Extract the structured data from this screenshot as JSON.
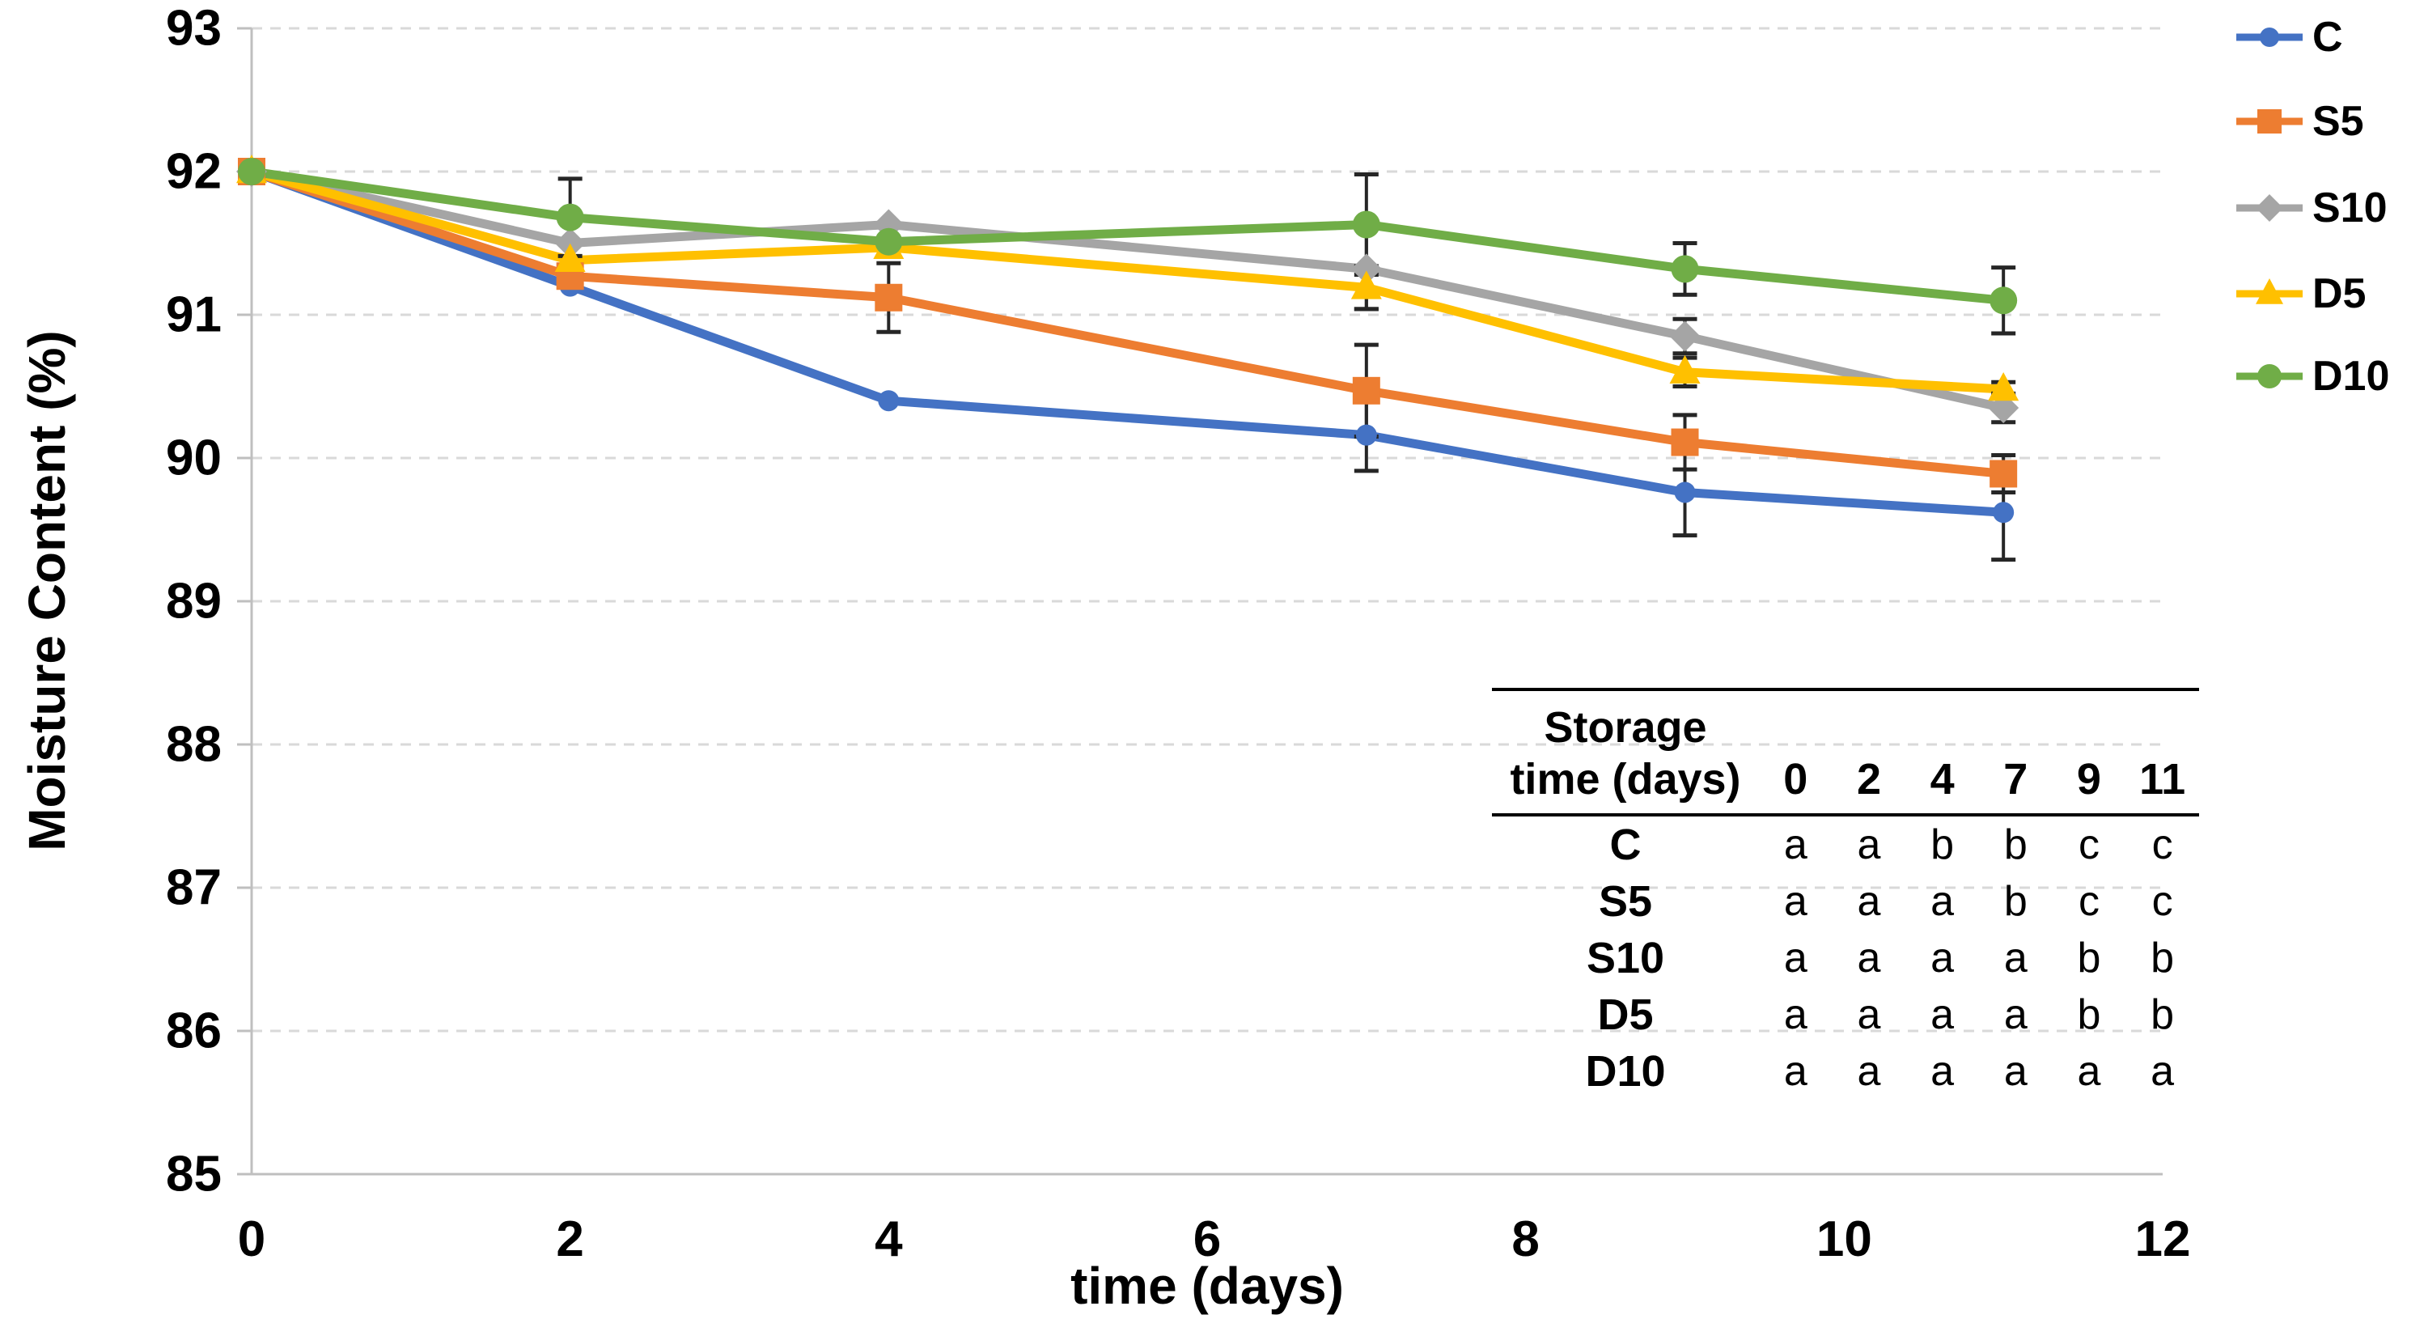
{
  "chart_data": {
    "type": "line",
    "title": "",
    "xlabel": "time (days)",
    "ylabel": "Moisture Content (%)",
    "x": [
      0,
      2,
      4,
      7,
      9,
      11
    ],
    "xlim": [
      0,
      12
    ],
    "ylim": [
      85,
      93
    ],
    "x_ticks": [
      0,
      2,
      4,
      6,
      8,
      10,
      12
    ],
    "y_ticks": [
      85,
      86,
      87,
      88,
      89,
      90,
      91,
      92,
      93
    ],
    "grid": "horizontal-dashed",
    "legend_position": "right",
    "series": [
      {
        "name": "C",
        "marker": "circle",
        "color": "#4472C4",
        "marker_size": 26,
        "values": [
          92.0,
          91.2,
          90.4,
          90.16,
          89.76,
          89.62
        ],
        "errors": [
          0.08,
          0,
          0,
          0.25,
          0.3,
          0.33
        ]
      },
      {
        "name": "S5",
        "marker": "square",
        "color": "#ED7D31",
        "marker_size": 34,
        "values": [
          92.0,
          91.27,
          91.12,
          90.47,
          90.11,
          89.89
        ],
        "errors": [
          0.08,
          0,
          0.24,
          0.32,
          0.19,
          0.13
        ]
      },
      {
        "name": "S10",
        "marker": "diamond",
        "color": "#A5A5A5",
        "marker_size": 38,
        "values": [
          92.0,
          91.5,
          91.63,
          91.32,
          90.85,
          90.35
        ],
        "errors": [
          0.08,
          0,
          0,
          0.28,
          0.12,
          0.1
        ]
      },
      {
        "name": "D5",
        "marker": "triangle",
        "color": "#FFC000",
        "marker_size": 38,
        "values": [
          92.0,
          91.38,
          91.47,
          91.19,
          90.6,
          90.48
        ],
        "errors": [
          0.08,
          0,
          0,
          0.15,
          0.1,
          0.05
        ]
      },
      {
        "name": "D10",
        "marker": "circle",
        "color": "#70AD47",
        "marker_size": 34,
        "values": [
          92.0,
          91.68,
          91.51,
          91.63,
          91.32,
          91.1
        ],
        "errors": [
          0.08,
          0.27,
          0,
          0.35,
          0.18,
          0.23
        ]
      }
    ]
  },
  "inset_table": {
    "header_line1": "Storage",
    "header_line2": "time (days)",
    "columns": [
      "0",
      "2",
      "4",
      "7",
      "9",
      "11"
    ],
    "rows": [
      {
        "label": "C",
        "letters": [
          "a",
          "a",
          "b",
          "b",
          "c",
          "c"
        ]
      },
      {
        "label": "S5",
        "letters": [
          "a",
          "a",
          "a",
          "b",
          "c",
          "c"
        ]
      },
      {
        "label": "S10",
        "letters": [
          "a",
          "a",
          "a",
          "a",
          "b",
          "b"
        ]
      },
      {
        "label": "D5",
        "letters": [
          "a",
          "a",
          "a",
          "a",
          "b",
          "b"
        ]
      },
      {
        "label": "D10",
        "letters": [
          "a",
          "a",
          "a",
          "a",
          "a",
          "a"
        ]
      }
    ]
  },
  "colors": {
    "background": "#FFFFFF",
    "axis_line": "#BFBFBF",
    "gridline": "#D9D9D9",
    "error_bar": "#262626",
    "text": "#000000"
  }
}
